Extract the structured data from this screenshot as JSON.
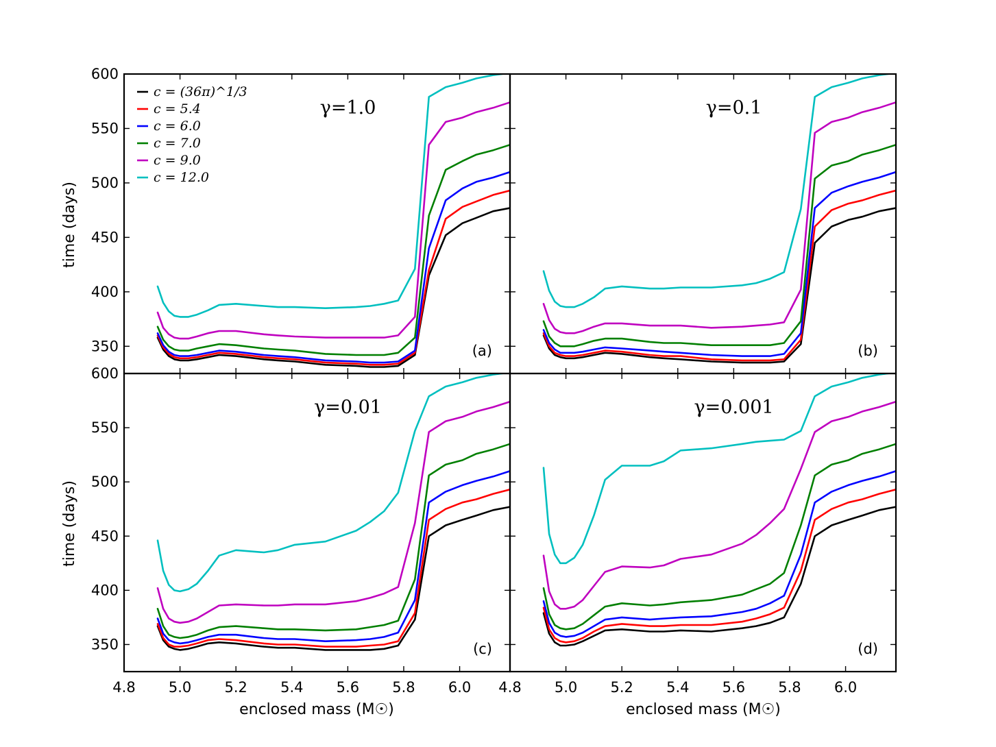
{
  "chart_data": {
    "type": "line",
    "layout": "2x2 grid, shared axes",
    "xlabel": "enclosed mass (M☉)",
    "ylabel": "time (days)",
    "xlim": [
      4.8,
      6.18
    ],
    "ylim": [
      325,
      600
    ],
    "xticks": [
      4.8,
      5.0,
      5.2,
      5.4,
      5.6,
      5.8,
      6.0
    ],
    "xtick_labels": [
      "4.8",
      "5.0",
      "5.2",
      "5.4",
      "5.6",
      "5.8",
      "6.0"
    ],
    "yticks": [
      350,
      400,
      450,
      500,
      550,
      600
    ],
    "ytick_labels": [
      "350",
      "400",
      "450",
      "500",
      "550",
      "600"
    ],
    "legend": {
      "placement": "top-left of panel (a)",
      "entries": [
        {
          "label": "c = (36π)^1/3",
          "color": "#000000"
        },
        {
          "label": "c = 5.4",
          "color": "#ff0000"
        },
        {
          "label": "c = 6.0",
          "color": "#0000ff"
        },
        {
          "label": "c = 7.0",
          "color": "#007f00"
        },
        {
          "label": "c = 9.0",
          "color": "#bf00bf"
        },
        {
          "label": "c = 12.0",
          "color": "#00bfbf"
        }
      ]
    },
    "x": [
      4.92,
      4.94,
      4.96,
      4.98,
      5.0,
      5.03,
      5.06,
      5.1,
      5.14,
      5.2,
      5.3,
      5.35,
      5.41,
      5.52,
      5.63,
      5.68,
      5.73,
      5.78,
      5.84,
      5.89,
      5.95,
      6.01,
      6.06,
      6.12,
      6.18
    ],
    "panels": [
      {
        "tag": "(a)",
        "gamma_label": "γ=1.0",
        "series": [
          {
            "name": "c = (36π)^1/3",
            "color": "#000000",
            "values": [
              358,
              347,
              341,
              338,
              337,
              337,
              338,
              340,
              342,
              341,
              338,
              337,
              336,
              333,
              332,
              331,
              331,
              332,
              342,
              415,
              452,
              463,
              468,
              474,
              477
            ]
          },
          {
            "name": "c = 5.4",
            "color": "#ff0000",
            "values": [
              360,
              349,
              343,
              340,
              339,
              339,
              340,
              342,
              344,
              343,
              340,
              339,
              338,
              335,
              334,
              333,
              333,
              334,
              344,
              420,
              467,
              478,
              483,
              489,
              493
            ]
          },
          {
            "name": "c = 6.0",
            "color": "#0000ff",
            "values": [
              362,
              351,
              345,
              342,
              341,
              341,
              342,
              344,
              346,
              345,
              342,
              341,
              340,
              337,
              336,
              335,
              335,
              336,
              346,
              440,
              484,
              495,
              501,
              505,
              510
            ]
          },
          {
            "name": "c = 7.0",
            "color": "#007f00",
            "values": [
              368,
              356,
              350,
              347,
              346,
              346,
              348,
              350,
              352,
              351,
              348,
              347,
              346,
              343,
              342,
              342,
              342,
              344,
              358,
              470,
              512,
              520,
              526,
              530,
              535
            ]
          },
          {
            "name": "c = 9.0",
            "color": "#bf00bf",
            "values": [
              381,
              367,
              361,
              358,
              357,
              357,
              359,
              362,
              364,
              364,
              361,
              360,
              359,
              358,
              358,
              358,
              358,
              360,
              377,
              535,
              556,
              560,
              565,
              569,
              574
            ]
          },
          {
            "name": "c = 12.0",
            "color": "#00bfbf",
            "values": [
              405,
              390,
              382,
              378,
              377,
              377,
              379,
              383,
              388,
              389,
              387,
              386,
              386,
              385,
              386,
              387,
              389,
              392,
              421,
              579,
              588,
              592,
              596,
              599,
              601
            ]
          }
        ]
      },
      {
        "tag": "(b)",
        "gamma_label": "γ=0.1",
        "series": [
          {
            "name": "c = (36π)^1/3",
            "color": "#000000",
            "values": [
              360,
              348,
              342,
              340,
              339,
              339,
              340,
              342,
              344,
              343,
              340,
              339,
              338,
              336,
              335,
              335,
              335,
              336,
              352,
              445,
              460,
              466,
              469,
              474,
              477
            ]
          },
          {
            "name": "c = 5.4",
            "color": "#ff0000",
            "values": [
              362,
              350,
              344,
              342,
              341,
              341,
              342,
              344,
              346,
              345,
              342,
              341,
              341,
              338,
              337,
              337,
              337,
              338,
              356,
              460,
              475,
              481,
              484,
              489,
              493
            ]
          },
          {
            "name": "c = 6.0",
            "color": "#0000ff",
            "values": [
              365,
              353,
              347,
              344,
              344,
              344,
              345,
              347,
              349,
              348,
              346,
              345,
              344,
              342,
              341,
              341,
              341,
              343,
              362,
              477,
              491,
              497,
              501,
              505,
              510
            ]
          },
          {
            "name": "c = 7.0",
            "color": "#007f00",
            "values": [
              373,
              359,
              353,
              350,
              350,
              350,
              352,
              355,
              357,
              357,
              354,
              353,
              353,
              351,
              351,
              351,
              351,
              353,
              373,
              504,
              516,
              520,
              526,
              530,
              535
            ]
          },
          {
            "name": "c = 9.0",
            "color": "#bf00bf",
            "values": [
              389,
              374,
              366,
              363,
              362,
              362,
              364,
              368,
              371,
              371,
              369,
              369,
              369,
              367,
              368,
              369,
              370,
              372,
              402,
              546,
              556,
              560,
              565,
              569,
              574
            ]
          },
          {
            "name": "c = 12.0",
            "color": "#00bfbf",
            "values": [
              419,
              401,
              391,
              387,
              386,
              386,
              389,
              395,
              403,
              405,
              403,
              403,
              404,
              404,
              406,
              408,
              412,
              418,
              476,
              579,
              588,
              592,
              596,
              599,
              601
            ]
          }
        ]
      },
      {
        "tag": "(c)",
        "gamma_label": "γ=0.01",
        "series": [
          {
            "name": "c = (36π)^1/3",
            "color": "#000000",
            "values": [
              367,
              354,
              348,
              346,
              345,
              346,
              348,
              351,
              352,
              351,
              348,
              347,
              347,
              345,
              345,
              345,
              346,
              349,
              373,
              450,
              460,
              465,
              469,
              474,
              477
            ]
          },
          {
            "name": "c = 5.4",
            "color": "#ff0000",
            "values": [
              369,
              356,
              350,
              348,
              348,
              349,
              351,
              354,
              355,
              354,
              351,
              350,
              350,
              348,
              348,
              349,
              350,
              353,
              379,
              465,
              475,
              481,
              484,
              489,
              493
            ]
          },
          {
            "name": "c = 6.0",
            "color": "#0000ff",
            "values": [
              374,
              360,
              354,
              352,
              351,
              352,
              354,
              357,
              359,
              359,
              356,
              355,
              355,
              353,
              354,
              355,
              357,
              361,
              391,
              481,
              491,
              497,
              501,
              505,
              510
            ]
          },
          {
            "name": "c = 7.0",
            "color": "#007f00",
            "values": [
              383,
              367,
              359,
              357,
              356,
              357,
              359,
              363,
              366,
              367,
              365,
              364,
              364,
              363,
              364,
              366,
              368,
              372,
              410,
              506,
              516,
              520,
              526,
              530,
              535
            ]
          },
          {
            "name": "c = 9.0",
            "color": "#bf00bf",
            "values": [
              402,
              383,
              374,
              371,
              370,
              371,
              374,
              380,
              386,
              387,
              386,
              386,
              387,
              387,
              390,
              393,
              397,
              403,
              462,
              546,
              556,
              560,
              565,
              569,
              574
            ]
          },
          {
            "name": "c = 12.0",
            "color": "#00bfbf",
            "values": [
              446,
              418,
              405,
              400,
              399,
              401,
              406,
              418,
              432,
              437,
              435,
              437,
              442,
              445,
              455,
              463,
              473,
              490,
              547,
              579,
              588,
              592,
              596,
              599,
              601
            ]
          }
        ]
      },
      {
        "tag": "(d)",
        "gamma_label": "γ=0.001",
        "series": [
          {
            "name": "c = (36π)^1/3",
            "color": "#000000",
            "values": [
              379,
              360,
              352,
              349,
              349,
              350,
              353,
              358,
              363,
              364,
              362,
              362,
              363,
              362,
              365,
              367,
              370,
              375,
              406,
              450,
              460,
              465,
              469,
              474,
              477
            ]
          },
          {
            "name": "c = 5.4",
            "color": "#ff0000",
            "values": [
              384,
              364,
              356,
              353,
              352,
              353,
              356,
              362,
              367,
              369,
              367,
              367,
              368,
              368,
              371,
              374,
              378,
              384,
              418,
              465,
              475,
              481,
              484,
              489,
              493
            ]
          },
          {
            "name": "c = 6.0",
            "color": "#0000ff",
            "values": [
              390,
              370,
              361,
              358,
              357,
              358,
              361,
              367,
              373,
              375,
              373,
              374,
              375,
              376,
              380,
              383,
              388,
              395,
              433,
              481,
              491,
              497,
              501,
              505,
              510
            ]
          },
          {
            "name": "c = 7.0",
            "color": "#007f00",
            "values": [
              402,
              378,
              368,
              365,
              364,
              365,
              369,
              377,
              385,
              388,
              386,
              387,
              389,
              391,
              396,
              401,
              406,
              416,
              460,
              506,
              516,
              520,
              526,
              530,
              535
            ]
          },
          {
            "name": "c = 9.0",
            "color": "#bf00bf",
            "values": [
              432,
              399,
              387,
              383,
              383,
              385,
              391,
              404,
              417,
              422,
              421,
              423,
              429,
              433,
              443,
              451,
              462,
              475,
              512,
              546,
              556,
              560,
              565,
              569,
              574
            ]
          },
          {
            "name": "c = 12.0",
            "color": "#00bfbf",
            "values": [
              513,
              452,
              433,
              425,
              425,
              430,
              442,
              469,
              502,
              515,
              515,
              519,
              529,
              531,
              535,
              537,
              538,
              539,
              547,
              579,
              588,
              592,
              596,
              599,
              601
            ]
          }
        ]
      }
    ]
  }
}
